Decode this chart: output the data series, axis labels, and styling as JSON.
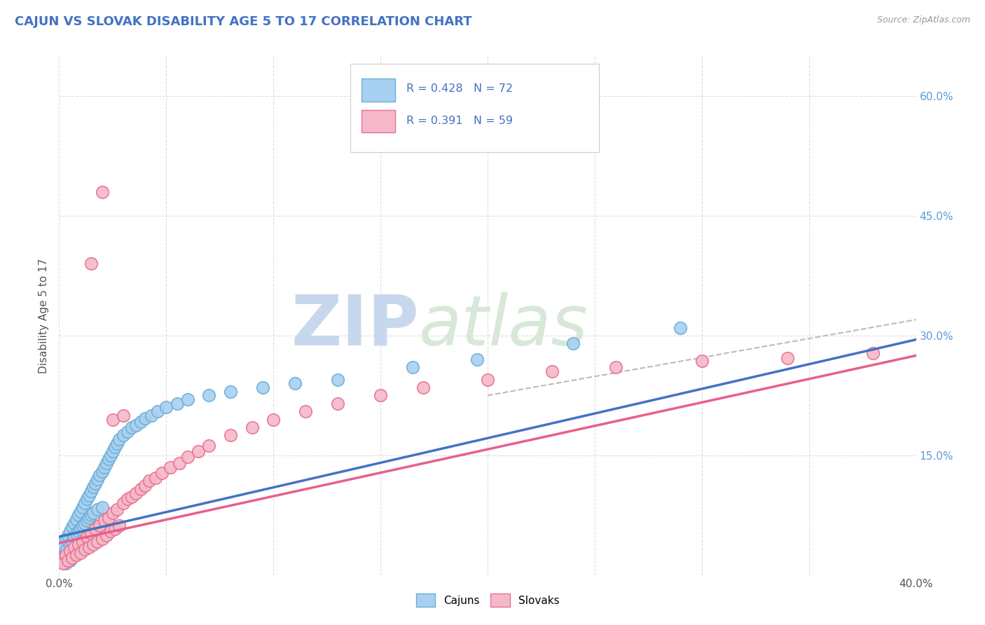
{
  "title": "CAJUN VS SLOVAK DISABILITY AGE 5 TO 17 CORRELATION CHART",
  "source_text": "Source: ZipAtlas.com",
  "ylabel": "Disability Age 5 to 17",
  "xlim": [
    0.0,
    0.4
  ],
  "ylim": [
    0.0,
    0.65
  ],
  "xticks": [
    0.0,
    0.05,
    0.1,
    0.15,
    0.2,
    0.25,
    0.3,
    0.35,
    0.4
  ],
  "yticks": [
    0.0,
    0.15,
    0.3,
    0.45,
    0.6
  ],
  "cajun_R": 0.428,
  "cajun_N": 72,
  "slovak_R": 0.391,
  "slovak_N": 59,
  "cajun_color": "#A8D0F0",
  "slovak_color": "#F5B8C8",
  "cajun_edge_color": "#6BAED6",
  "slovak_edge_color": "#E87090",
  "cajun_line_color": "#4472C4",
  "slovak_line_color": "#E8608A",
  "gray_dash_color": "#BBBBBB",
  "background_color": "#FFFFFF",
  "grid_color": "#DDDDDD",
  "title_color": "#4472C4",
  "ylabel_color": "#555555",
  "ytick_label_color": "#5B9BD5",
  "xtick_label_color": "#555555",
  "watermark_text": "ZIPatlas",
  "watermark_color": "#E8EEF5",
  "cajun_x": [
    0.001,
    0.001,
    0.002,
    0.002,
    0.003,
    0.003,
    0.003,
    0.004,
    0.004,
    0.005,
    0.005,
    0.005,
    0.006,
    0.006,
    0.006,
    0.007,
    0.007,
    0.007,
    0.008,
    0.008,
    0.008,
    0.009,
    0.009,
    0.01,
    0.01,
    0.01,
    0.011,
    0.011,
    0.012,
    0.012,
    0.013,
    0.013,
    0.014,
    0.014,
    0.015,
    0.015,
    0.016,
    0.016,
    0.017,
    0.018,
    0.018,
    0.019,
    0.02,
    0.02,
    0.021,
    0.022,
    0.023,
    0.024,
    0.025,
    0.026,
    0.027,
    0.028,
    0.03,
    0.032,
    0.034,
    0.036,
    0.038,
    0.04,
    0.043,
    0.046,
    0.05,
    0.055,
    0.06,
    0.07,
    0.08,
    0.095,
    0.11,
    0.13,
    0.165,
    0.195,
    0.24,
    0.29
  ],
  "cajun_y": [
    0.04,
    0.025,
    0.035,
    0.02,
    0.045,
    0.03,
    0.015,
    0.05,
    0.022,
    0.055,
    0.038,
    0.018,
    0.06,
    0.042,
    0.025,
    0.065,
    0.048,
    0.028,
    0.07,
    0.052,
    0.032,
    0.075,
    0.055,
    0.08,
    0.058,
    0.035,
    0.085,
    0.062,
    0.09,
    0.065,
    0.095,
    0.068,
    0.1,
    0.072,
    0.105,
    0.075,
    0.11,
    0.078,
    0.115,
    0.12,
    0.082,
    0.125,
    0.13,
    0.085,
    0.135,
    0.14,
    0.145,
    0.15,
    0.155,
    0.16,
    0.165,
    0.17,
    0.175,
    0.18,
    0.185,
    0.188,
    0.192,
    0.196,
    0.2,
    0.205,
    0.21,
    0.215,
    0.22,
    0.225,
    0.23,
    0.235,
    0.24,
    0.245,
    0.26,
    0.27,
    0.29,
    0.31
  ],
  "slovak_x": [
    0.001,
    0.002,
    0.003,
    0.004,
    0.005,
    0.006,
    0.007,
    0.008,
    0.009,
    0.01,
    0.011,
    0.012,
    0.013,
    0.014,
    0.015,
    0.016,
    0.017,
    0.018,
    0.019,
    0.02,
    0.021,
    0.022,
    0.023,
    0.024,
    0.025,
    0.026,
    0.027,
    0.028,
    0.03,
    0.032,
    0.034,
    0.036,
    0.038,
    0.04,
    0.042,
    0.045,
    0.048,
    0.052,
    0.056,
    0.06,
    0.065,
    0.07,
    0.08,
    0.09,
    0.1,
    0.115,
    0.13,
    0.15,
    0.17,
    0.2,
    0.23,
    0.26,
    0.3,
    0.34,
    0.38,
    0.015,
    0.02,
    0.025,
    0.03
  ],
  "slovak_y": [
    0.02,
    0.015,
    0.025,
    0.018,
    0.03,
    0.022,
    0.035,
    0.025,
    0.038,
    0.028,
    0.042,
    0.032,
    0.048,
    0.035,
    0.052,
    0.038,
    0.058,
    0.042,
    0.062,
    0.045,
    0.068,
    0.05,
    0.072,
    0.055,
    0.078,
    0.058,
    0.082,
    0.062,
    0.09,
    0.095,
    0.098,
    0.102,
    0.108,
    0.112,
    0.118,
    0.122,
    0.128,
    0.135,
    0.14,
    0.148,
    0.155,
    0.162,
    0.175,
    0.185,
    0.195,
    0.205,
    0.215,
    0.225,
    0.235,
    0.245,
    0.255,
    0.26,
    0.268,
    0.272,
    0.278,
    0.39,
    0.48,
    0.195,
    0.2
  ],
  "cajun_trend": [
    0.0,
    0.4
  ],
  "cajun_trend_y": [
    0.048,
    0.295
  ],
  "slovak_trend": [
    0.0,
    0.4
  ],
  "slovak_trend_y": [
    0.04,
    0.275
  ],
  "gray_trend": [
    0.2,
    0.4
  ],
  "gray_trend_y": [
    0.225,
    0.32
  ]
}
